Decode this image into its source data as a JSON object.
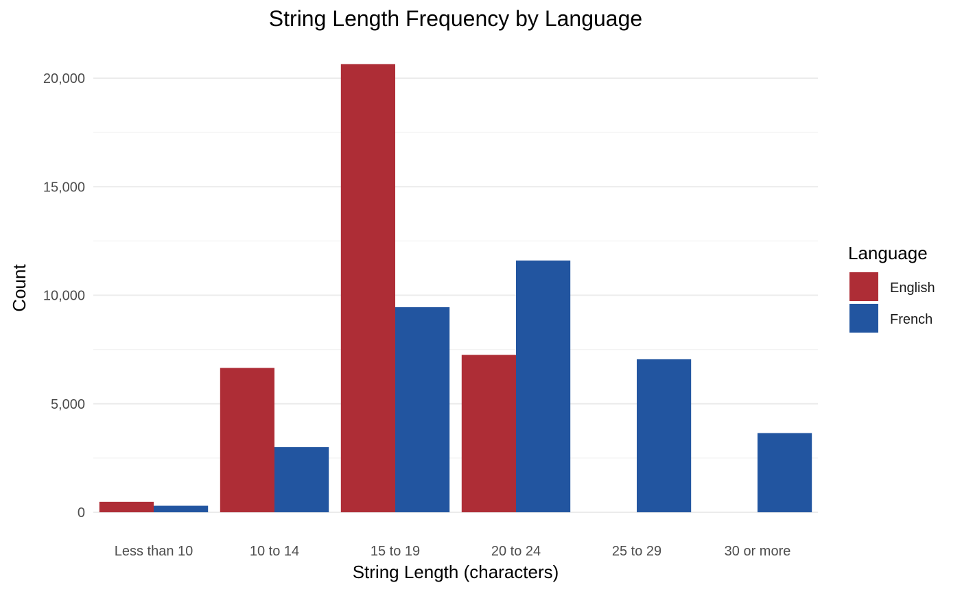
{
  "chart_data": {
    "type": "bar",
    "title": "String Length Frequency by Language",
    "xlabel": "String Length (characters)",
    "ylabel": "Count",
    "categories": [
      "Less than 10",
      "10 to 14",
      "15 to 19",
      "20 to 24",
      "25 to 29",
      "30 or more"
    ],
    "series": [
      {
        "name": "English",
        "color": "#AE2D36",
        "values": [
          480,
          6650,
          20650,
          7250,
          0,
          0
        ]
      },
      {
        "name": "French",
        "color": "#2255A0",
        "values": [
          300,
          3000,
          9450,
          11600,
          7050,
          3650
        ]
      }
    ],
    "ylim": [
      0,
      21000
    ],
    "yticks": [
      0,
      5000,
      10000,
      15000,
      20000
    ],
    "ytick_labels": [
      "0",
      "5,000",
      "10,000",
      "15,000",
      "20,000"
    ],
    "grid": true,
    "legend": {
      "title": "Language",
      "position": "right"
    }
  }
}
